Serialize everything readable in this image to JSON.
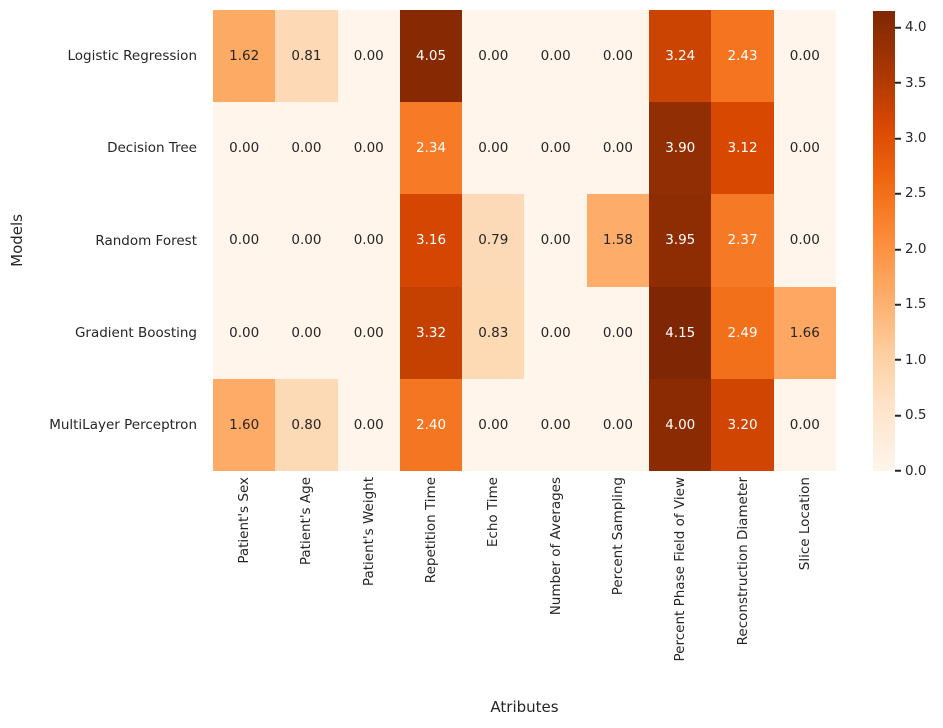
{
  "figure": {
    "background": "#ffffff",
    "text_color": "#262626"
  },
  "chart_data": {
    "type": "heatmap",
    "title": "",
    "xlabel": "Atributes",
    "ylabel": "Models",
    "rows": [
      "Logistic Regression",
      "Decision Tree",
      "Random Forest",
      "Gradient Boosting",
      "MultiLayer Perceptron"
    ],
    "columns": [
      "Patient's Sex",
      "Patient's Age",
      "Patient's Weight",
      "Repetition Time",
      "Echo Time",
      "Number of Averages",
      "Percent Sampling",
      "Percent Phase Field of View",
      "Reconstruction Diameter",
      "Slice Location"
    ],
    "values": [
      [
        1.62,
        0.81,
        0.0,
        4.05,
        0.0,
        0.0,
        0.0,
        3.24,
        2.43,
        0.0
      ],
      [
        0.0,
        0.0,
        0.0,
        2.34,
        0.0,
        0.0,
        0.0,
        3.9,
        3.12,
        0.0
      ],
      [
        0.0,
        0.0,
        0.0,
        3.16,
        0.79,
        0.0,
        1.58,
        3.95,
        2.37,
        0.0
      ],
      [
        0.0,
        0.0,
        0.0,
        3.32,
        0.83,
        0.0,
        0.0,
        4.15,
        2.49,
        1.66
      ],
      [
        1.6,
        0.8,
        0.0,
        2.4,
        0.0,
        0.0,
        0.0,
        4.0,
        3.2,
        0.0
      ]
    ],
    "value_format_decimals": 2,
    "colormap": "Oranges",
    "colormap_stops": [
      "#fff5eb",
      "#fee6ce",
      "#fdd0a2",
      "#fdae6b",
      "#fd8d3c",
      "#f16913",
      "#d94801",
      "#a63603",
      "#7f2704"
    ],
    "vmin": 0,
    "vmax": 4.15,
    "colorbar_ticks": [
      0.0,
      0.5,
      1.0,
      1.5,
      2.0,
      2.5,
      3.0,
      3.5,
      4.0
    ],
    "colorbar_tick_decimals": 1,
    "annotation_text_dark": "#262626",
    "annotation_text_light": "#ffffff",
    "legend_position": "right-colorbar",
    "grid": false
  }
}
